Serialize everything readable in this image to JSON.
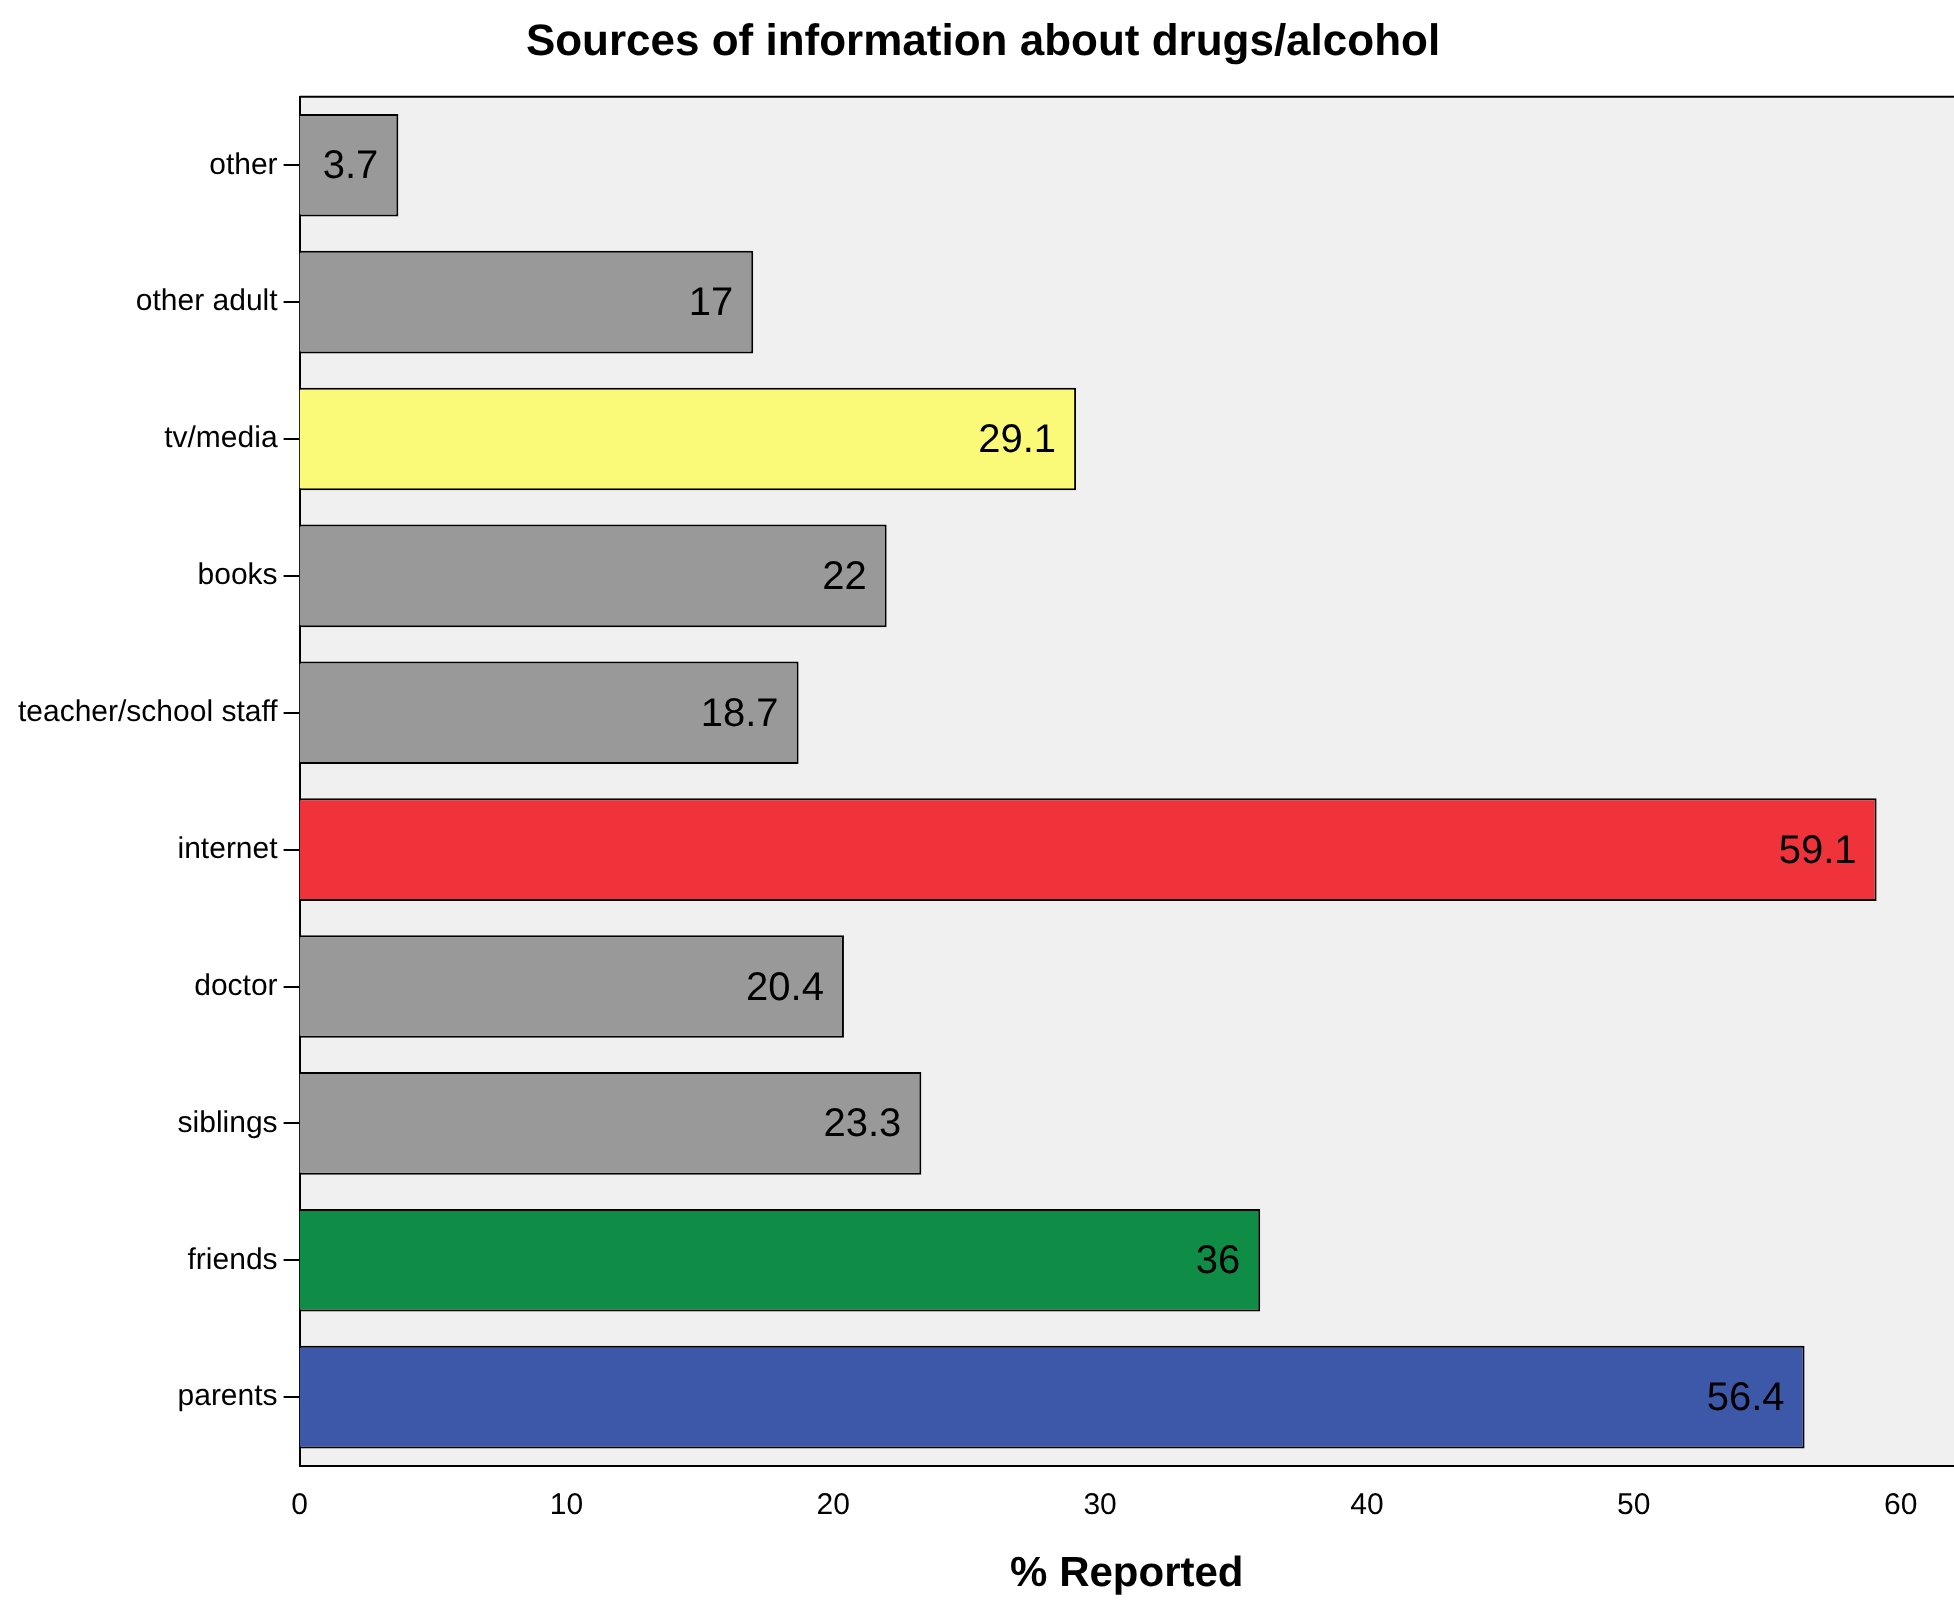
{
  "chart_data": {
    "type": "bar",
    "orientation": "horizontal",
    "title": "Sources of information about drugs/alcohol",
    "xlabel": "% Reported",
    "categories": [
      "other",
      "other adult",
      "tv/media",
      "books",
      "teacher/school staff",
      "internet",
      "doctor",
      "siblings",
      "friends",
      "parents"
    ],
    "values": [
      3.7,
      17,
      29.1,
      22,
      18.7,
      59.1,
      20.4,
      23.3,
      36,
      56.4
    ],
    "colors": [
      "#999999",
      "#999999",
      "#fafa78",
      "#999999",
      "#999999",
      "#f0323a",
      "#999999",
      "#999999",
      "#0f8c46",
      "#3d57a9"
    ],
    "xlim": [
      0,
      62
    ],
    "xticks": [
      0,
      10,
      20,
      30,
      40,
      50,
      60
    ],
    "grid": false,
    "legend": false,
    "data_labels": true
  }
}
